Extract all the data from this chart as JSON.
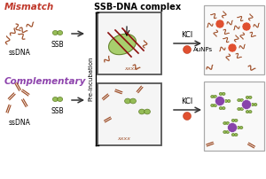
{
  "bg_color": "#ffffff",
  "title_text": "SSB-DNA complex",
  "mismatch_color": "#c0392b",
  "complementary_color": "#8e44ad",
  "ssb_color": "#8db84a",
  "ssb_edge_color": "#5a7a20",
  "dna_color": "#a0522d",
  "aunp_red_color": "#e05030",
  "aunp_purple_color": "#8844aa",
  "arrow_color": "#333333",
  "box_edge_color": "#555555",
  "box_face_color": "#f5f5f5",
  "rbox_edge_color": "#aaaaaa",
  "rbox_face_color": "#f9f9f9",
  "kcl_text": "KCl",
  "aunps_text": "AuNPs",
  "ssb_label": "SSB",
  "ssdna_label": "ssDNA",
  "preincubation_label": "Pre-incubation",
  "mismatch_label": "Mismatch",
  "complementary_label": "Complementary"
}
